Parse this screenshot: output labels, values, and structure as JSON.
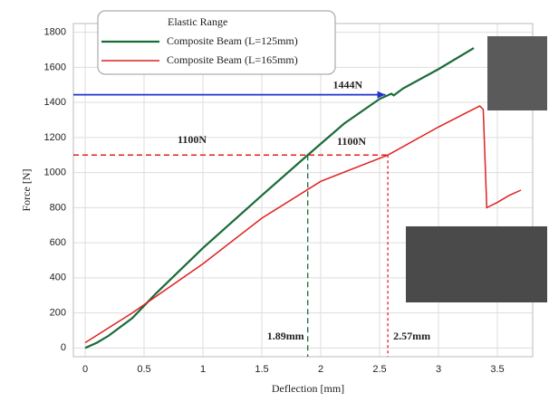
{
  "chart_data": {
    "type": "line",
    "legend_title": "Elastic Range",
    "xlabel": "Deflection [mm]",
    "ylabel": "Force [N]",
    "xlim": [
      -0.1,
      3.8
    ],
    "xticks": [
      0,
      0.5,
      1,
      1.5,
      2,
      2.5,
      3,
      3.5
    ],
    "ylim": [
      -50,
      1850
    ],
    "yticks": [
      0,
      200,
      400,
      600,
      800,
      1000,
      1200,
      1400,
      1600,
      1800
    ],
    "grid": true,
    "series": [
      {
        "name": "Composite Beam (L=125mm)",
        "color": "#1a6b3a",
        "x": [
          0,
          0.1,
          0.2,
          0.4,
          0.6,
          1,
          1.5,
          1.89,
          2.2,
          2.5,
          2.6,
          2.62,
          2.7,
          3,
          3.3
        ],
        "values": [
          0,
          30,
          70,
          170,
          310,
          570,
          870,
          1100,
          1280,
          1420,
          1450,
          1440,
          1480,
          1590,
          1710
        ]
      },
      {
        "name": "Composite Beam (L=165mm)",
        "color": "#e02020",
        "x": [
          0,
          0.4,
          1,
          1.5,
          2,
          2.57,
          3,
          3.35,
          3.38,
          3.41,
          3.5,
          3.6,
          3.7
        ],
        "values": [
          30,
          200,
          480,
          740,
          950,
          1100,
          1260,
          1380,
          1360,
          800,
          830,
          870,
          900
        ]
      }
    ],
    "annotations": [
      {
        "text": "1444N",
        "y": 1444,
        "x_end": 2.55,
        "color": "#2233cc"
      },
      {
        "text": "1100N",
        "y": 1100,
        "color": "#1a6b3a"
      },
      {
        "text": "1100N",
        "y": 1100,
        "color": "#e02020"
      },
      {
        "text": "1.89mm",
        "x": 1.89,
        "color": "#1a6b3a"
      },
      {
        "text": "2.57mm",
        "x": 2.57,
        "color": "#e02020"
      }
    ]
  }
}
